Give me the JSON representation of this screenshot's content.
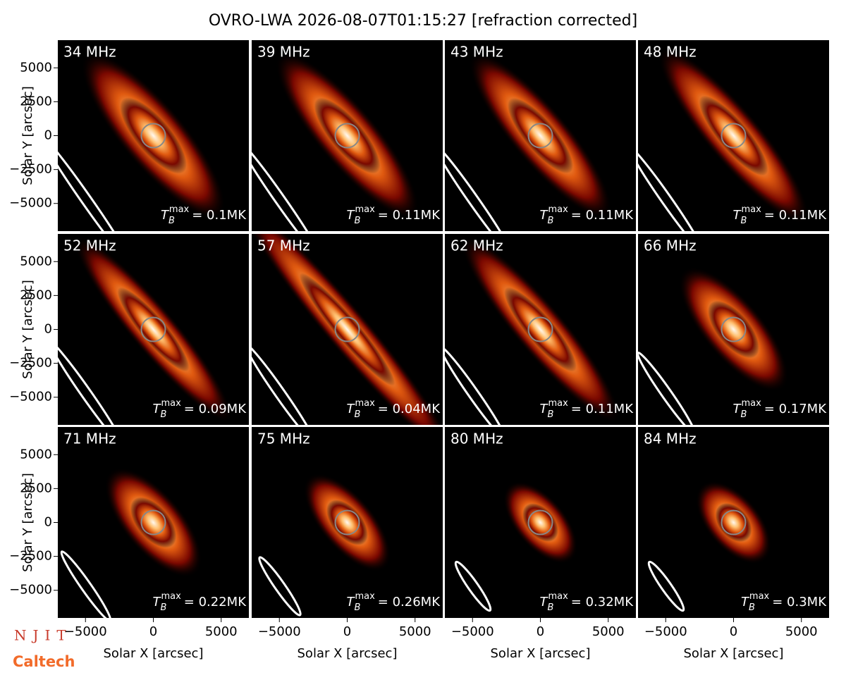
{
  "chart_data": {
    "type": "image-grid",
    "title": "OVRO-LWA 2026-08-07T01:15:27 [refraction corrected]",
    "x_label": "Solar X [arcsec]",
    "y_label": "Solar Y [arcsec]",
    "xlim": [
      -7040,
      7040
    ],
    "ylim": [
      -7040,
      7040
    ],
    "xticks": [
      {
        "value": -5000,
        "label": "−5000"
      },
      0,
      5000
    ],
    "yticks": [
      {
        "value": -5000,
        "label": "−5000"
      },
      {
        "value": -2500,
        "label": "−2500"
      },
      0,
      2500,
      5000
    ],
    "tmax_symbol": "T",
    "tmax_sub": "B",
    "tmax_sup": "max",
    "panels": [
      {
        "freq": "34 MHz",
        "tmax": "= 0.1MK"
      },
      {
        "freq": "39 MHz",
        "tmax": "= 0.11MK"
      },
      {
        "freq": "43 MHz",
        "tmax": "= 0.11MK"
      },
      {
        "freq": "48 MHz",
        "tmax": "= 0.11MK"
      },
      {
        "freq": "52 MHz",
        "tmax": "= 0.09MK"
      },
      {
        "freq": "57 MHz",
        "tmax": "= 0.04MK"
      },
      {
        "freq": "62 MHz",
        "tmax": "= 0.11MK"
      },
      {
        "freq": "66 MHz",
        "tmax": "= 0.17MK"
      },
      {
        "freq": "71 MHz",
        "tmax": "= 0.22MK"
      },
      {
        "freq": "75 MHz",
        "tmax": "= 0.26MK"
      },
      {
        "freq": "80 MHz",
        "tmax": "= 0.32MK"
      },
      {
        "freq": "84 MHz",
        "tmax": "= 0.3MK"
      }
    ],
    "logo": {
      "top": "NJIT",
      "bottom": "Caltech"
    }
  }
}
